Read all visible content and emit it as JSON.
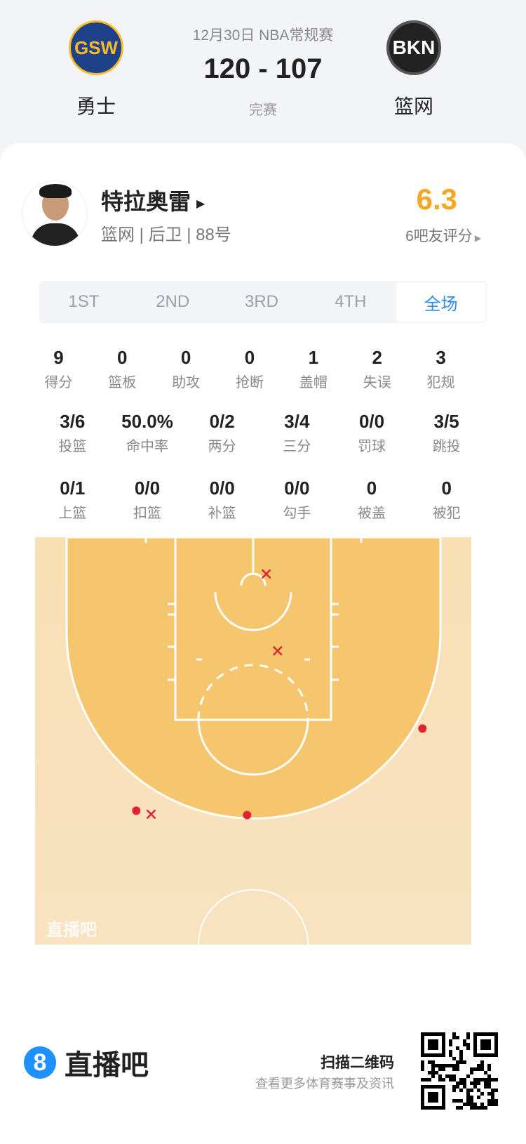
{
  "header": {
    "date_league": "12月30日 NBA常规赛",
    "score": "120 - 107",
    "status": "完赛",
    "home": {
      "name": "勇士",
      "logo_text": "GSW",
      "color": "#1d428a",
      "accent": "#fdb927"
    },
    "away": {
      "name": "篮网",
      "logo_text": "BKN",
      "color": "#000000"
    }
  },
  "player": {
    "name": "特拉奥雷",
    "info": "篮网 | 后卫 | 88号",
    "rating": "6.3",
    "rating_label": "6吧友评分",
    "rating_color": "#f5a623"
  },
  "tabs": [
    {
      "label": "1ST"
    },
    {
      "label": "2ND"
    },
    {
      "label": "3RD"
    },
    {
      "label": "4TH"
    },
    {
      "label": "全场",
      "active": true
    }
  ],
  "stats_row1": [
    {
      "v": "9",
      "l": "得分"
    },
    {
      "v": "0",
      "l": "篮板"
    },
    {
      "v": "0",
      "l": "助攻"
    },
    {
      "v": "0",
      "l": "抢断"
    },
    {
      "v": "1",
      "l": "盖帽"
    },
    {
      "v": "2",
      "l": "失误"
    },
    {
      "v": "3",
      "l": "犯规"
    }
  ],
  "stats_row2": [
    {
      "v": "3/6",
      "l": "投篮"
    },
    {
      "v": "50.0%",
      "l": "命中率"
    },
    {
      "v": "0/2",
      "l": "两分"
    },
    {
      "v": "3/4",
      "l": "三分"
    },
    {
      "v": "0/0",
      "l": "罚球"
    },
    {
      "v": "3/5",
      "l": "跳投"
    }
  ],
  "stats_row3": [
    {
      "v": "0/1",
      "l": "上篮"
    },
    {
      "v": "0/0",
      "l": "扣篮"
    },
    {
      "v": "0/0",
      "l": "补篮"
    },
    {
      "v": "0/0",
      "l": "勾手"
    },
    {
      "v": "0",
      "l": "被盖"
    },
    {
      "v": "0",
      "l": "被犯"
    }
  ],
  "shot_chart": {
    "units": "feet from left sideline / baseline",
    "watermark": "直播吧",
    "made_color": "#e02430",
    "miss_color": "#e02430",
    "shots": [
      {
        "x": 26.5,
        "y": 4.2,
        "made": false
      },
      {
        "x": 27.8,
        "y": 13.0,
        "made": false
      },
      {
        "x": 13.3,
        "y": 31.7,
        "made": false
      },
      {
        "x": 44.4,
        "y": 21.9,
        "made": true
      },
      {
        "x": 11.6,
        "y": 31.3,
        "made": true
      },
      {
        "x": 24.3,
        "y": 31.8,
        "made": true
      }
    ]
  },
  "footer": {
    "brand": "直播吧",
    "brand_icon": "8",
    "scan_title": "扫描二维码",
    "scan_sub": "查看更多体育赛事及资讯"
  }
}
